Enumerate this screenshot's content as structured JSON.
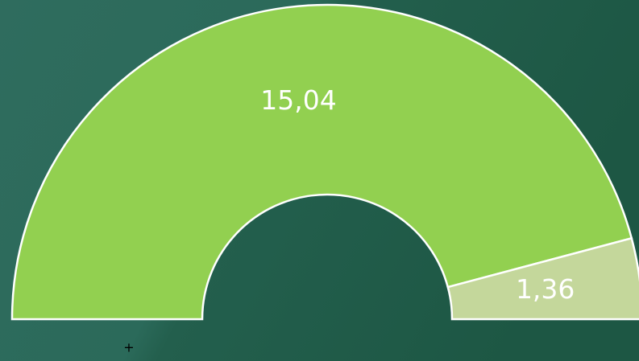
{
  "chart_data": {
    "type": "half-doughnut",
    "values": [
      15.04,
      1.36
    ],
    "value_labels": [
      "15,04",
      "1,36"
    ],
    "colors": [
      "#92d050",
      "#c4d79b"
    ],
    "annotation": "+"
  }
}
